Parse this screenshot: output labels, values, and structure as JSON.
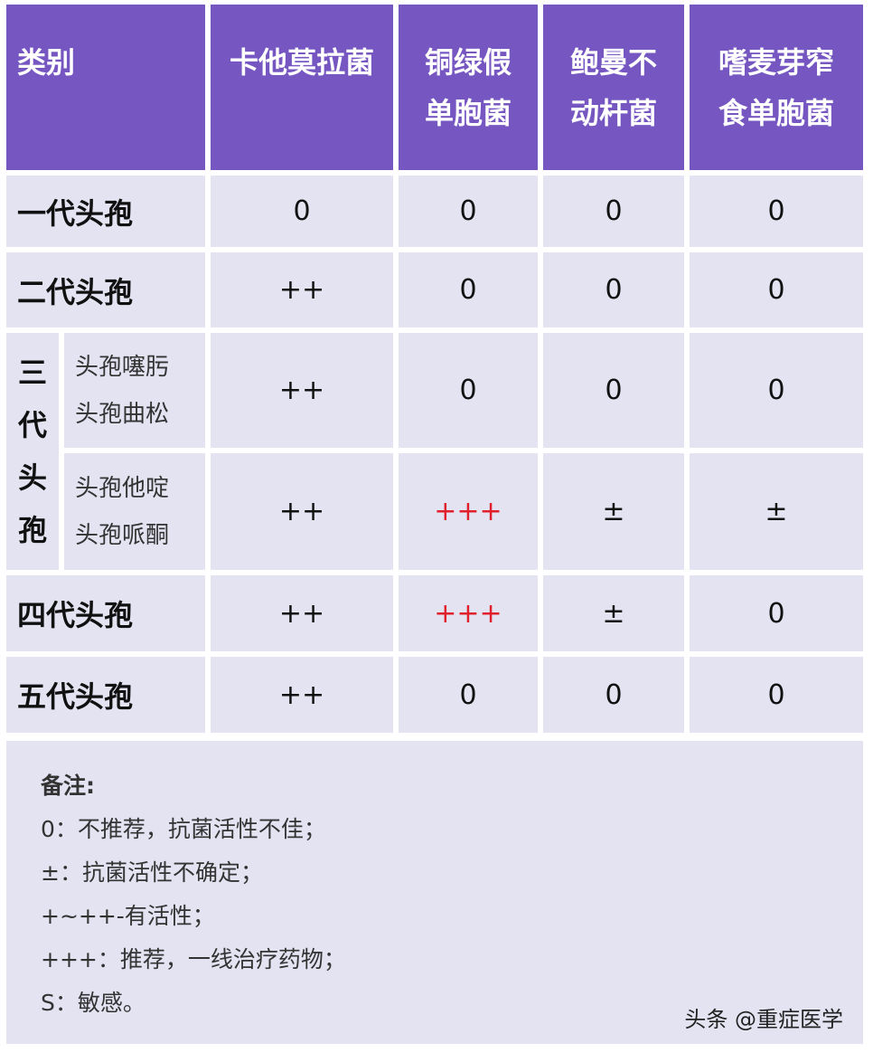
{
  "colors": {
    "header_bg": "#7657c2",
    "cell_bg": "#e3e3f2",
    "highlight": "#e0202a"
  },
  "header": {
    "category": "类别",
    "cols": [
      "卡他莫拉菌",
      "铜绿假\n单胞菌",
      "鲍曼不\n动杆菌",
      "嗜麦芽窄\n食单胞菌"
    ]
  },
  "rows": [
    {
      "label": "一代头孢",
      "values": [
        "0",
        "0",
        "0",
        "0"
      ]
    },
    {
      "label": "二代头孢",
      "values": [
        "++",
        "0",
        "0",
        "0"
      ]
    },
    {
      "label": "三代头孢",
      "subrows": [
        {
          "drugs": [
            "头孢噻肟",
            "头孢曲松"
          ],
          "values": [
            "++",
            "0",
            "0",
            "0"
          ]
        },
        {
          "drugs": [
            "头孢他啶",
            "头孢哌酮"
          ],
          "values": [
            "++",
            "+++",
            "±",
            "±"
          ]
        }
      ]
    },
    {
      "label": "四代头孢",
      "values": [
        "++",
        "+++",
        "±",
        "0"
      ]
    },
    {
      "label": "五代头孢",
      "values": [
        "++",
        "0",
        "0",
        "0"
      ]
    }
  ],
  "notes": {
    "title": "备注:",
    "lines": [
      "0：不推荐，抗菌活性不佳；",
      "±：抗菌活性不确定；",
      "+~++-有活性；",
      "+++：推荐，一线治疗药物；",
      "S：敏感。"
    ]
  },
  "watermark": "头条 @重症医学"
}
